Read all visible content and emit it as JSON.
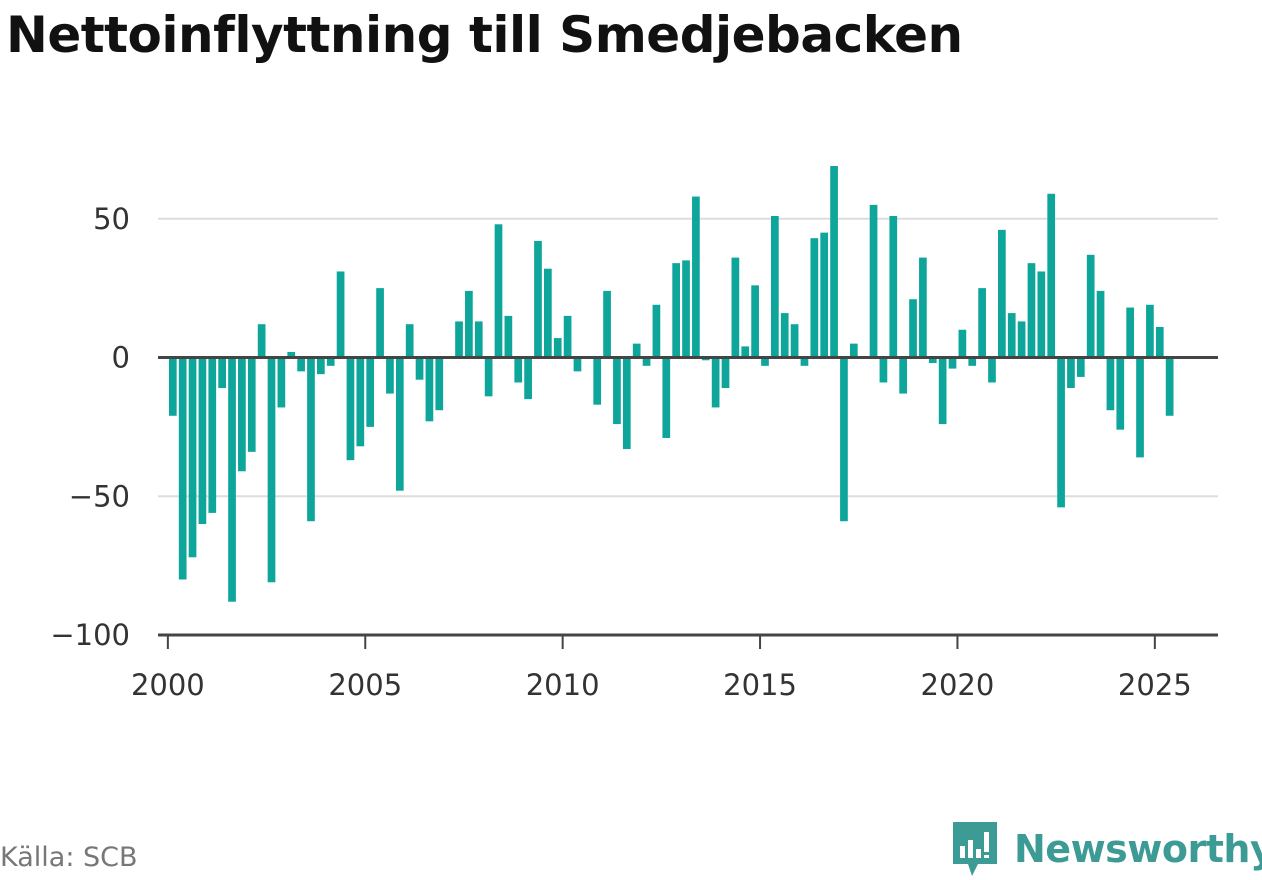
{
  "title": "Nettoinflyttning till Smedjebacken",
  "source": "Källa: SCB",
  "brand": {
    "name": "Newsworthy",
    "icon": "newsworthy-logo-icon",
    "color": "#3d9b96"
  },
  "colors": {
    "bar": "#0ea59a",
    "grid": "#dddddd",
    "axis": "#444444",
    "text": "#333333"
  },
  "chart_data": {
    "type": "bar",
    "xlabel": "",
    "ylabel": "",
    "ylim": [
      -100,
      70
    ],
    "xlim": [
      1999.75,
      2026.6
    ],
    "grid": true,
    "yticks": [
      {
        "value": 50,
        "label": "50"
      },
      {
        "value": 0,
        "label": "0"
      },
      {
        "value": -50,
        "label": "−50"
      },
      {
        "value": -100,
        "label": "−100"
      }
    ],
    "xticks": [
      {
        "value": 2000,
        "label": "2000"
      },
      {
        "value": 2005,
        "label": "2005"
      },
      {
        "value": 2010,
        "label": "2010"
      },
      {
        "value": 2015,
        "label": "2015"
      },
      {
        "value": 2020,
        "label": "2020"
      },
      {
        "value": 2025,
        "label": "2025"
      }
    ],
    "series": [
      {
        "start_year": 2000,
        "periods_per_year": 4,
        "values": [
          -21,
          -80,
          -72,
          -60,
          -56,
          -11,
          -88,
          -41,
          -34,
          12,
          -81,
          -18,
          2,
          -5,
          -59,
          -6,
          -3,
          31,
          -37,
          -32,
          -25,
          25,
          -13,
          -48,
          12,
          -8,
          -23,
          -19,
          0,
          13,
          24,
          13,
          -14,
          48,
          15,
          -9,
          -15,
          42,
          32,
          7,
          15,
          -5,
          0,
          -17,
          24,
          -24,
          -33,
          5,
          -3,
          19,
          -29,
          34,
          35,
          58,
          -1,
          -18,
          -11,
          36,
          4,
          26,
          -3,
          51,
          16,
          12,
          -3,
          43,
          45,
          69,
          -59,
          5,
          0,
          55,
          -9,
          51,
          -13,
          21,
          36,
          -2,
          -24,
          -4,
          10,
          -3,
          25,
          -9,
          46,
          16,
          13,
          34,
          31,
          59,
          -54,
          -11,
          -7,
          37,
          24,
          -19,
          -26,
          18,
          -36,
          19,
          11,
          -21
        ]
      }
    ]
  }
}
